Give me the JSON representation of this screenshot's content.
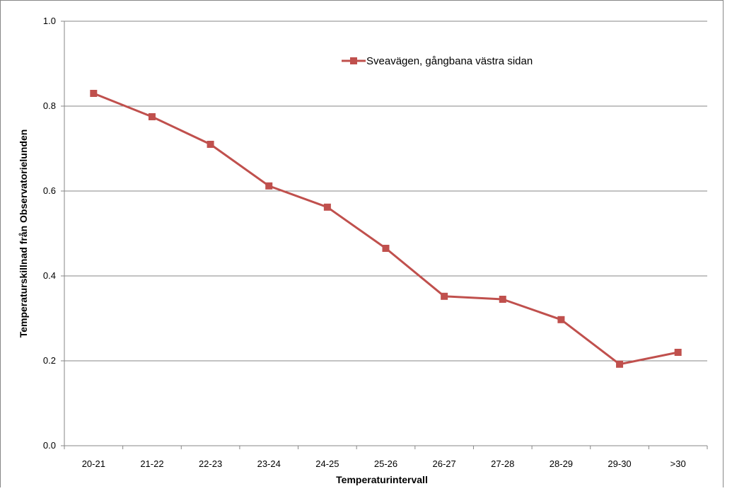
{
  "chart_data": {
    "type": "line",
    "title": "",
    "xlabel": "Temperaturintervall",
    "ylabel": "Temperaturskillnad från Observatorielunden",
    "categories": [
      "20-21",
      "21-22",
      "22-23",
      "23-24",
      "24-25",
      "25-26",
      "26-27",
      "27-28",
      "28-29",
      "29-30",
      ">30"
    ],
    "series": [
      {
        "name": "Sveavägen, gångbana västra sidan",
        "values": [
          0.83,
          0.775,
          0.71,
          0.612,
          0.562,
          0.465,
          0.352,
          0.345,
          0.297,
          0.192,
          0.22
        ],
        "marker": "square"
      }
    ],
    "ylim": [
      0,
      1.0
    ],
    "yticks": [
      "0.0",
      "0.2",
      "0.4",
      "0.6",
      "0.8",
      "1.0"
    ],
    "grid": "horizontal",
    "legend_position": "top-right"
  },
  "colors": {
    "series": "#C0504D",
    "grid": "#878787",
    "axis": "#878787",
    "border": "#878787"
  }
}
